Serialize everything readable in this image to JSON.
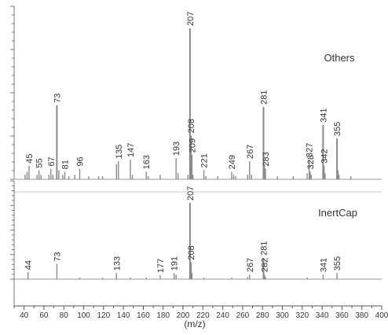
{
  "chart_data": [
    {
      "type": "bar",
      "panel": "top",
      "series_label": "Others",
      "x_unit": "m/z",
      "ylim": [
        0,
        100
      ],
      "peaks": [
        {
          "x": 41,
          "y": 3
        },
        {
          "x": 43,
          "y": 5
        },
        {
          "x": 45,
          "y": 9,
          "label": "45"
        },
        {
          "x": 53,
          "y": 3
        },
        {
          "x": 55,
          "y": 6,
          "label": "55"
        },
        {
          "x": 57,
          "y": 3
        },
        {
          "x": 65,
          "y": 3
        },
        {
          "x": 67,
          "y": 7,
          "label": "67"
        },
        {
          "x": 69,
          "y": 3
        },
        {
          "x": 73,
          "y": 49,
          "label": "73"
        },
        {
          "x": 75,
          "y": 6
        },
        {
          "x": 79,
          "y": 3
        },
        {
          "x": 81,
          "y": 5,
          "label": "81"
        },
        {
          "x": 85,
          "y": 2
        },
        {
          "x": 91,
          "y": 3
        },
        {
          "x": 96,
          "y": 7,
          "label": "96"
        },
        {
          "x": 105,
          "y": 2
        },
        {
          "x": 115,
          "y": 2
        },
        {
          "x": 119,
          "y": 2
        },
        {
          "x": 133,
          "y": 10
        },
        {
          "x": 135,
          "y": 12,
          "label": "135"
        },
        {
          "x": 147,
          "y": 13,
          "label": "147"
        },
        {
          "x": 149,
          "y": 3
        },
        {
          "x": 163,
          "y": 5,
          "label": "163"
        },
        {
          "x": 165,
          "y": 2
        },
        {
          "x": 177,
          "y": 3
        },
        {
          "x": 193,
          "y": 14,
          "label": "193"
        },
        {
          "x": 195,
          "y": 4
        },
        {
          "x": 205,
          "y": 3
        },
        {
          "x": 207,
          "y": 100,
          "label": "207"
        },
        {
          "x": 208,
          "y": 29,
          "label": "208"
        },
        {
          "x": 209,
          "y": 16,
          "label": "209"
        },
        {
          "x": 210,
          "y": 3
        },
        {
          "x": 221,
          "y": 6,
          "label": "221"
        },
        {
          "x": 223,
          "y": 2
        },
        {
          "x": 235,
          "y": 2
        },
        {
          "x": 249,
          "y": 5,
          "label": "249"
        },
        {
          "x": 251,
          "y": 3
        },
        {
          "x": 253,
          "y": 2
        },
        {
          "x": 265,
          "y": 3
        },
        {
          "x": 267,
          "y": 12,
          "label": "267"
        },
        {
          "x": 269,
          "y": 3
        },
        {
          "x": 281,
          "y": 48,
          "label": "281"
        },
        {
          "x": 282,
          "y": 10
        },
        {
          "x": 283,
          "y": 7,
          "label": "283"
        },
        {
          "x": 295,
          "y": 2
        },
        {
          "x": 311,
          "y": 2
        },
        {
          "x": 325,
          "y": 4
        },
        {
          "x": 327,
          "y": 13,
          "label": "327"
        },
        {
          "x": 328,
          "y": 5,
          "label": "328"
        },
        {
          "x": 329,
          "y": 3
        },
        {
          "x": 341,
          "y": 36,
          "label": "341"
        },
        {
          "x": 342,
          "y": 9,
          "label": "342"
        },
        {
          "x": 343,
          "y": 4
        },
        {
          "x": 355,
          "y": 27,
          "label": "355"
        },
        {
          "x": 356,
          "y": 6
        },
        {
          "x": 357,
          "y": 3
        },
        {
          "x": 369,
          "y": 2
        }
      ]
    },
    {
      "type": "bar",
      "panel": "bottom",
      "series_label": "InertCap",
      "x_unit": "m/z",
      "ylim": [
        0,
        100
      ],
      "peaks": [
        {
          "x": 44,
          "y": 9,
          "label": "44"
        },
        {
          "x": 73,
          "y": 20,
          "label": "73"
        },
        {
          "x": 96,
          "y": 2
        },
        {
          "x": 119,
          "y": 2
        },
        {
          "x": 133,
          "y": 8,
          "label": "133"
        },
        {
          "x": 147,
          "y": 2
        },
        {
          "x": 163,
          "y": 2
        },
        {
          "x": 177,
          "y": 5,
          "label": "177"
        },
        {
          "x": 191,
          "y": 8,
          "label": "191"
        },
        {
          "x": 193,
          "y": 6
        },
        {
          "x": 207,
          "y": 100,
          "label": "207"
        },
        {
          "x": 208,
          "y": 22,
          "label": "208"
        },
        {
          "x": 209,
          "y": 8
        },
        {
          "x": 221,
          "y": 2
        },
        {
          "x": 249,
          "y": 2
        },
        {
          "x": 265,
          "y": 3
        },
        {
          "x": 267,
          "y": 6,
          "label": "267"
        },
        {
          "x": 281,
          "y": 28,
          "label": "281"
        },
        {
          "x": 282,
          "y": 6,
          "label": "282"
        },
        {
          "x": 283,
          "y": 3
        },
        {
          "x": 325,
          "y": 2
        },
        {
          "x": 341,
          "y": 6,
          "label": "341"
        },
        {
          "x": 355,
          "y": 8,
          "label": "355"
        }
      ]
    }
  ],
  "x_axis": {
    "label": "(m/z)",
    "min": 30,
    "max": 400,
    "ticks": [
      40,
      60,
      80,
      100,
      120,
      140,
      160,
      180,
      200,
      220,
      240,
      260,
      280,
      300,
      320,
      340,
      360,
      380,
      400
    ]
  }
}
